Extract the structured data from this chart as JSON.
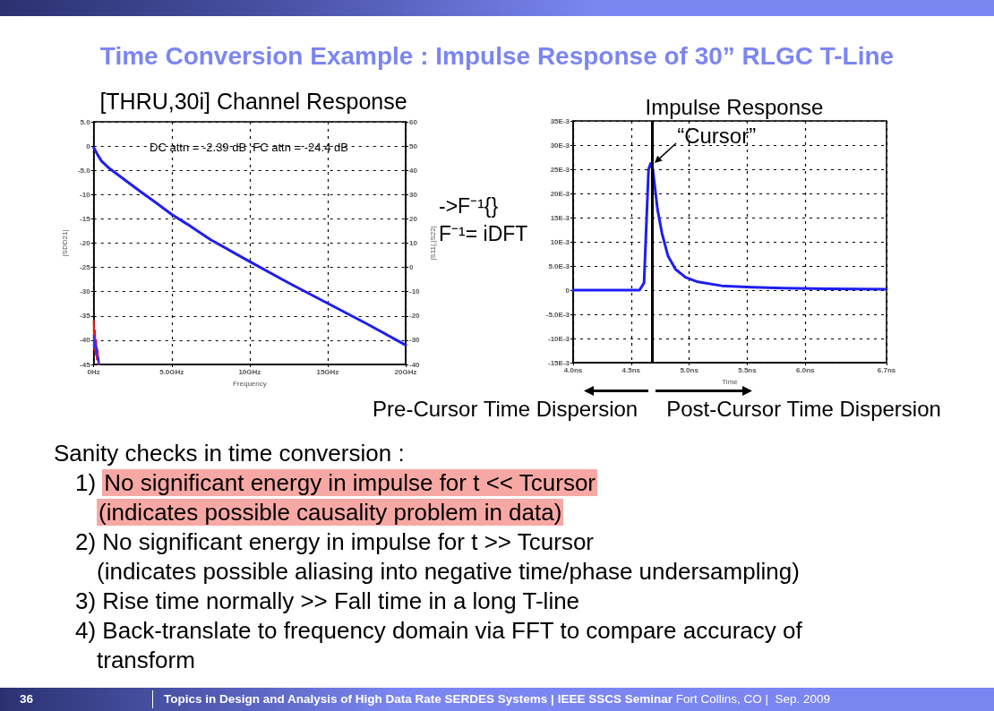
{
  "chart_data": [
    {
      "type": "other",
      "title": "Time Conversion Example : Impulse Response of 30” RLGC T-Line"
    },
    {
      "type": "line",
      "title": "[THRU,30i] Channel Response",
      "xlabel": "Frequency",
      "ylabel": "|SDD21|",
      "y2label": "|S11|,|S22|",
      "annotations": [
        "DC attn = -2.39 dB  FC attn = -24.4 dB"
      ],
      "xlim": [
        0,
        20
      ],
      "xticks": [
        {
          "value": 0,
          "label": "0Hz"
        },
        {
          "value": 5,
          "label": "5.0GHz"
        },
        {
          "value": 10,
          "label": "10GHz"
        },
        {
          "value": 15,
          "label": "15GHz"
        },
        {
          "value": 20,
          "label": "20GHz"
        }
      ],
      "ylim": [
        -45,
        5
      ],
      "yticks": [
        -45,
        -40,
        -35,
        -30,
        -25,
        -20,
        -15,
        -10,
        {
          "value": -5,
          "label": "-5.0"
        },
        0,
        {
          "value": 5,
          "label": "5.0"
        }
      ],
      "y2lim": [
        -40,
        60
      ],
      "y2ticks": [
        -40,
        -30,
        -20,
        -10,
        0,
        10,
        20,
        30,
        40,
        50,
        60
      ],
      "grid": true,
      "series": [
        {
          "color": "#1e1ef0",
          "x": [
            0,
            0.25,
            0.5,
            1,
            2,
            3,
            4,
            5,
            6,
            7.5,
            10,
            12.5,
            15,
            17.5,
            20
          ],
          "values": [
            -0.3,
            -1.8,
            -3.1,
            -4.6,
            -7,
            -9.4,
            -11.7,
            -14.1,
            -16.1,
            -19.3,
            -23.8,
            -28.2,
            -32.4,
            -36.6,
            -41
          ]
        },
        {
          "color": "#ff1010",
          "axis": "y2",
          "x": [
            0,
            0.04,
            0.08,
            0.12,
            0.16,
            0.2,
            0.25,
            0.3
          ],
          "values": [
            -22,
            -34,
            -26,
            -36,
            -30,
            -38,
            -34,
            -40
          ]
        },
        {
          "color": "#3030ff",
          "axis": "y2",
          "x": [
            0,
            0.05,
            0.1,
            0.15,
            0.2,
            0.25,
            0.3,
            0.35
          ],
          "values": [
            -28,
            -33,
            -30,
            -35,
            -33,
            -38,
            -37,
            -40
          ]
        }
      ]
    },
    {
      "type": "line",
      "title": "Impulse Response",
      "xlabel": "Time",
      "annotations": [
        {
          "text": "“Cursor”",
          "x": 4.68,
          "y": 0.026
        },
        "->F⁻¹{}",
        "F⁻¹= iDFT",
        "Pre-Cursor Time Dispersion",
        "Post-Cursor Time Dispersion"
      ],
      "xlim": [
        4,
        6.7
      ],
      "xticks": [
        {
          "value": 4,
          "label": "4.0ns"
        },
        {
          "value": 4.5,
          "label": "4.5ns"
        },
        {
          "value": 5,
          "label": "5.0ns"
        },
        {
          "value": 5.5,
          "label": "5.5ns"
        },
        {
          "value": 6,
          "label": "6.0ns"
        },
        {
          "value": 6.7,
          "label": "6.7ns"
        }
      ],
      "ylim": [
        -0.015,
        0.035
      ],
      "yticks": [
        {
          "value": -0.015,
          "label": "-15E-3"
        },
        {
          "value": -0.01,
          "label": "-10E-3"
        },
        {
          "value": -0.005,
          "label": "-5.0E-3"
        },
        0,
        {
          "value": 0.005,
          "label": "5.0E-3"
        },
        {
          "value": 0.01,
          "label": "10E-3"
        },
        {
          "value": 0.015,
          "label": "15E-3"
        },
        {
          "value": 0.02,
          "label": "20E-3"
        },
        {
          "value": 0.025,
          "label": "25E-3"
        },
        {
          "value": 0.03,
          "label": "30E-3"
        },
        {
          "value": 0.035,
          "label": "35E-3"
        }
      ],
      "grid": true,
      "ref_lines": [
        {
          "axis": "x",
          "value": 4.68,
          "color": "#000000"
        }
      ],
      "series": [
        {
          "color": "#1e1ef0",
          "x": [
            4,
            4.3,
            4.572,
            4.611,
            4.65,
            4.668,
            4.688,
            4.727,
            4.766,
            4.817,
            4.882,
            4.972,
            5.075,
            5.28,
            5.54,
            5.8,
            6.18,
            6.7
          ],
          "values": [
            0,
            0,
            0,
            0.0015,
            0.025,
            0.0262,
            0.0247,
            0.0167,
            0.0117,
            0.0071,
            0.0043,
            0.0026,
            0.0017,
            0.0009,
            0.0006,
            0.0004,
            0.0003,
            0.0002
          ]
        }
      ]
    },
    {
      "type": "other",
      "annotations": [
        "Sanity checks in time conversion :",
        "1) No significant energy in impulse for t << Tcursor",
        "(indicates possible causality problem in data)",
        "2) No significant energy in impulse for t >> Tcursor",
        "(indicates possible aliasing into negative time/phase undersampling)",
        "3) Rise time normally >> Fall time in a long T-line",
        "4) Back-translate to frequency domain via FFT to compare accuracy of",
        "transform"
      ]
    },
    {
      "type": "other",
      "annotations": [
        "36",
        "Topics in Design and Analysis of High Data Rate SERDES Systems | IEEE SSCS Seminar",
        "Fort Collins, CO |  Sep. 2009"
      ]
    }
  ]
}
